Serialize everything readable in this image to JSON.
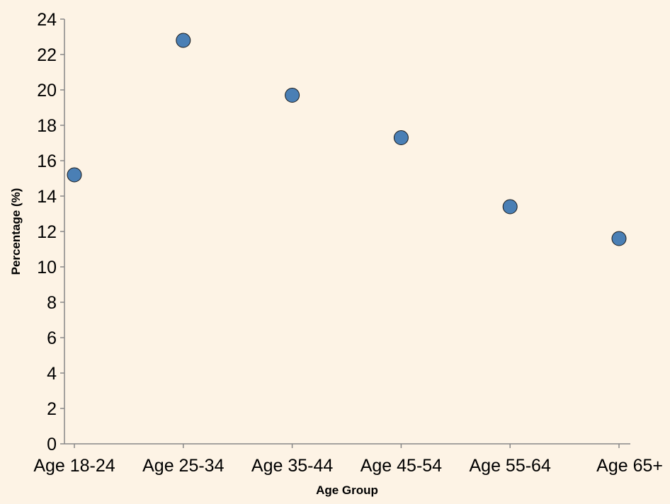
{
  "colors": {
    "background": "#fdf3e5",
    "point_fill": "#4a7fb5",
    "point_stroke": "#1a1a1a",
    "axis": "#888888"
  },
  "chart_data": {
    "type": "scatter",
    "xlabel": "Age Group",
    "ylabel": "Percentage (%)",
    "categories": [
      "Age 18-24",
      "Age 25-34",
      "Age 35-44",
      "Age 45-54",
      "Age 55-64",
      "Age 65+"
    ],
    "values": [
      15.2,
      22.8,
      19.7,
      17.3,
      13.4,
      11.6
    ],
    "ylim": [
      0,
      24
    ],
    "yticks": [
      0,
      2,
      4,
      6,
      8,
      10,
      12,
      14,
      16,
      18,
      20,
      22,
      24
    ],
    "grid": false,
    "legend": "none"
  }
}
